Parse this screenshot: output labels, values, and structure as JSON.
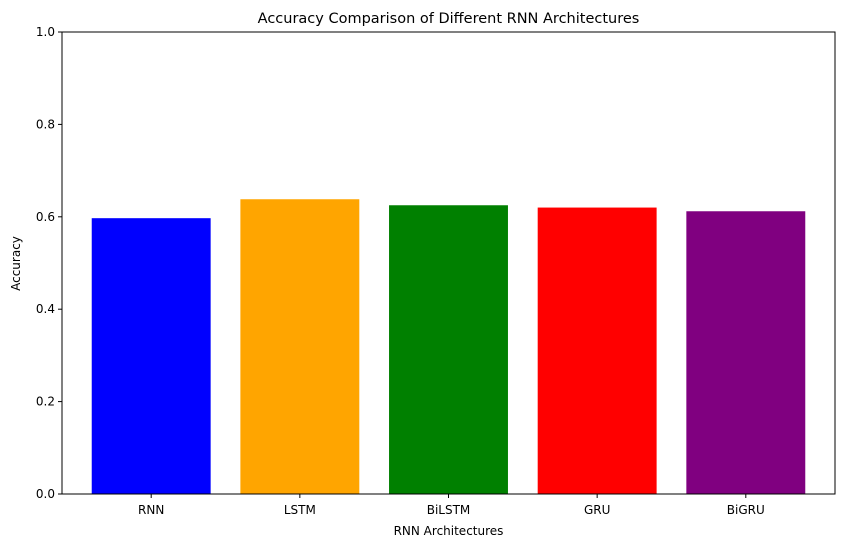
{
  "chart_data": {
    "type": "bar",
    "title": "Accuracy Comparison of Different RNN Architectures",
    "xlabel": "RNN Architectures",
    "ylabel": "Accuracy",
    "categories": [
      "RNN",
      "LSTM",
      "BiLSTM",
      "GRU",
      "BiGRU"
    ],
    "values": [
      0.597,
      0.638,
      0.625,
      0.62,
      0.612
    ],
    "colors": [
      "#0000ff",
      "#ffa500",
      "#008000",
      "#ff0000",
      "#800080"
    ],
    "ylim": [
      0,
      1.0
    ],
    "yticks": [
      "0.0",
      "0.2",
      "0.4",
      "0.6",
      "0.8",
      "1.0"
    ],
    "grid": false,
    "legend": "none"
  }
}
